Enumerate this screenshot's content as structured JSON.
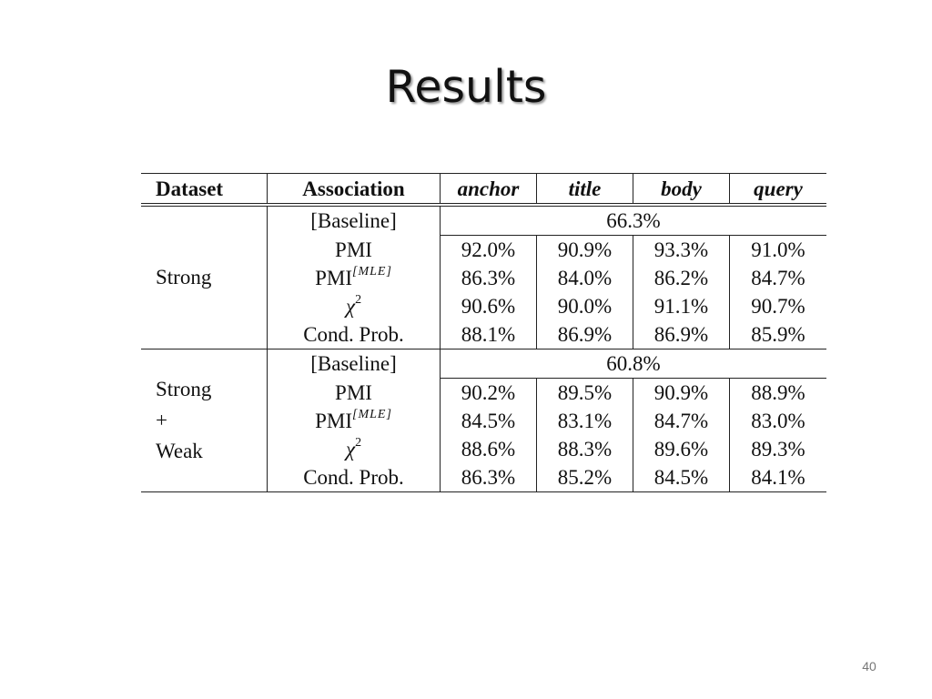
{
  "slide": {
    "title": "Results",
    "page_number": "40"
  },
  "table": {
    "headers": {
      "dataset": "Dataset",
      "association": "Association",
      "anchor": "anchor",
      "title": "title",
      "body": "body",
      "query": "query"
    },
    "groups": [
      {
        "dataset_lines": [
          "Strong"
        ],
        "baseline_label": "[Baseline]",
        "baseline_value": "66.3%",
        "rows": [
          {
            "association": "PMI",
            "anchor": "92.0%",
            "title": "90.9%",
            "body": "93.3%",
            "query": "91.0%"
          },
          {
            "association": "PMI",
            "superscript": "[MLE]",
            "anchor": "86.3%",
            "title": "84.0%",
            "body": "86.2%",
            "query": "84.7%"
          },
          {
            "association": "χ",
            "superscript": "2",
            "anchor": "90.6%",
            "title": "90.0%",
            "body": "91.1%",
            "query": "90.7%"
          },
          {
            "association": "Cond. Prob.",
            "anchor": "88.1%",
            "title": "86.9%",
            "body": "86.9%",
            "query": "85.9%"
          }
        ]
      },
      {
        "dataset_lines": [
          "Strong",
          "+",
          "Weak"
        ],
        "baseline_label": "[Baseline]",
        "baseline_value": "60.8%",
        "rows": [
          {
            "association": "PMI",
            "anchor": "90.2%",
            "title": "89.5%",
            "body": "90.9%",
            "query": "88.9%"
          },
          {
            "association": "PMI",
            "superscript": "[MLE]",
            "anchor": "84.5%",
            "title": "83.1%",
            "body": "84.7%",
            "query": "83.0%"
          },
          {
            "association": "χ",
            "superscript": "2",
            "anchor": "88.6%",
            "title": "88.3%",
            "body": "89.6%",
            "query": "89.3%"
          },
          {
            "association": "Cond. Prob.",
            "anchor": "86.3%",
            "title": "85.2%",
            "body": "84.5%",
            "query": "84.1%"
          }
        ]
      }
    ]
  }
}
